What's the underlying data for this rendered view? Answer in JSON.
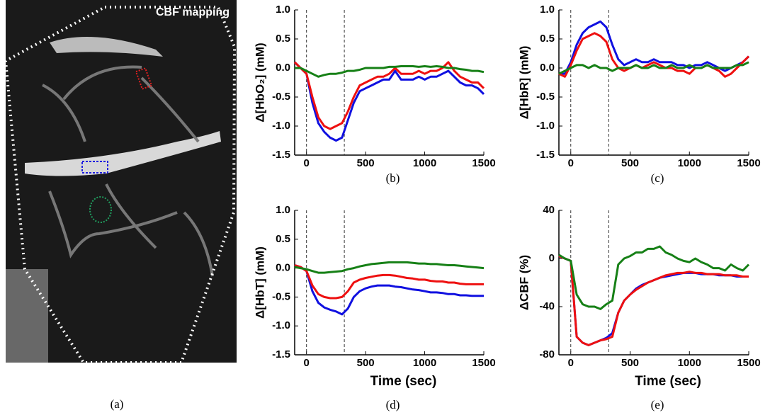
{
  "image_panel": {
    "label": "CBF mapping",
    "caption": "(a)"
  },
  "chart_data": [
    {
      "type": "line",
      "caption": "(b)",
      "ylabel": "Δ[HbO₂] (mM)",
      "x": [
        -100,
        -50,
        0,
        50,
        100,
        150,
        200,
        250,
        300,
        350,
        400,
        450,
        500,
        550,
        600,
        650,
        700,
        750,
        800,
        850,
        900,
        950,
        1000,
        1050,
        1100,
        1150,
        1200,
        1250,
        1300,
        1350,
        1400,
        1450,
        1500
      ],
      "series": [
        {
          "color": "#1010e0",
          "values": [
            0.1,
            0.0,
            -0.1,
            -0.6,
            -0.95,
            -1.1,
            -1.2,
            -1.25,
            -1.2,
            -0.9,
            -0.6,
            -0.4,
            -0.35,
            -0.3,
            -0.25,
            -0.2,
            -0.2,
            -0.05,
            -0.2,
            -0.2,
            -0.2,
            -0.15,
            -0.2,
            -0.15,
            -0.15,
            -0.1,
            -0.05,
            -0.15,
            -0.25,
            -0.3,
            -0.3,
            -0.35,
            -0.45
          ]
        },
        {
          "color": "#ee1010",
          "values": [
            0.1,
            0.0,
            -0.1,
            -0.5,
            -0.85,
            -1.0,
            -1.05,
            -1.0,
            -0.95,
            -0.75,
            -0.5,
            -0.3,
            -0.25,
            -0.2,
            -0.15,
            -0.15,
            -0.1,
            0.0,
            -0.1,
            -0.1,
            -0.1,
            -0.05,
            -0.1,
            -0.05,
            -0.05,
            0.0,
            0.1,
            -0.05,
            -0.15,
            -0.2,
            -0.25,
            -0.25,
            -0.35
          ]
        },
        {
          "color": "#168016",
          "values": [
            0.0,
            0.0,
            -0.05,
            -0.1,
            -0.15,
            -0.12,
            -0.1,
            -0.1,
            -0.08,
            -0.05,
            -0.05,
            -0.03,
            0.0,
            0.0,
            0.0,
            0.0,
            0.02,
            0.02,
            0.03,
            0.03,
            0.03,
            0.02,
            0.03,
            0.02,
            0.03,
            0.02,
            0.0,
            0.0,
            -0.02,
            -0.03,
            -0.05,
            -0.05,
            -0.07
          ]
        }
      ],
      "vlines": [
        0,
        320
      ],
      "xlim": [
        -100,
        1500
      ],
      "xticks": [
        0,
        500,
        1000,
        1500
      ],
      "ylim": [
        -1.5,
        1.0
      ],
      "yticks": [
        -1.5,
        {
          "value": -1,
          "label": "-1.0"
        },
        -0.5,
        {
          "value": 0,
          "label": "0.0"
        },
        0.5,
        {
          "value": 1,
          "label": "1.0"
        }
      ]
    },
    {
      "type": "line",
      "caption": "(c)",
      "ylabel": "Δ[HbR] (mM)",
      "x": [
        -100,
        -50,
        0,
        50,
        100,
        150,
        200,
        250,
        300,
        350,
        400,
        450,
        500,
        550,
        600,
        650,
        700,
        750,
        800,
        850,
        900,
        950,
        1000,
        1050,
        1100,
        1150,
        1200,
        1250,
        1300,
        1350,
        1400,
        1450,
        1500
      ],
      "series": [
        {
          "color": "#1010e0",
          "values": [
            -0.1,
            -0.1,
            0.1,
            0.4,
            0.6,
            0.7,
            0.75,
            0.8,
            0.7,
            0.4,
            0.15,
            0.05,
            0.1,
            0.15,
            0.1,
            0.1,
            0.15,
            0.1,
            0.1,
            0.1,
            0.05,
            0.05,
            0.0,
            0.05,
            0.05,
            0.1,
            0.05,
            0.0,
            -0.05,
            0.0,
            0.05,
            0.1,
            0.2
          ]
        },
        {
          "color": "#ee1010",
          "values": [
            -0.1,
            -0.15,
            0.05,
            0.3,
            0.5,
            0.55,
            0.6,
            0.55,
            0.45,
            0.15,
            0.0,
            -0.05,
            0.0,
            0.05,
            0.0,
            0.05,
            0.1,
            0.05,
            0.0,
            0.0,
            -0.05,
            -0.05,
            -0.1,
            0.0,
            0.0,
            0.05,
            0.0,
            -0.05,
            -0.15,
            -0.1,
            0.0,
            0.1,
            0.2
          ]
        },
        {
          "color": "#168016",
          "values": [
            -0.1,
            -0.05,
            0.0,
            0.05,
            0.05,
            0.0,
            0.05,
            0.0,
            0.0,
            -0.05,
            0.0,
            0.0,
            0.0,
            0.05,
            0.0,
            0.0,
            0.05,
            0.0,
            0.0,
            0.05,
            0.0,
            0.0,
            0.05,
            0.0,
            0.0,
            0.05,
            0.0,
            0.0,
            0.0,
            0.0,
            0.05,
            0.05,
            0.1
          ]
        }
      ],
      "vlines": [
        0,
        320
      ],
      "xlim": [
        -100,
        1500
      ],
      "xticks": [
        0,
        500,
        1000,
        1500
      ],
      "ylim": [
        -1.5,
        1.0
      ],
      "yticks": [
        -1.5,
        {
          "value": -1,
          "label": "-1.0"
        },
        -0.5,
        {
          "value": 0,
          "label": "0.0"
        },
        0.5,
        {
          "value": 1,
          "label": "1.0"
        }
      ]
    },
    {
      "type": "line",
      "caption": "(d)",
      "ylabel": "Δ[HbT] (mM)",
      "xlabel": "Time (sec)",
      "x": [
        -100,
        -50,
        0,
        50,
        100,
        150,
        200,
        250,
        300,
        350,
        400,
        450,
        500,
        550,
        600,
        650,
        700,
        750,
        800,
        850,
        900,
        950,
        1000,
        1050,
        1100,
        1150,
        1200,
        1250,
        1300,
        1350,
        1400,
        1450,
        1500
      ],
      "series": [
        {
          "color": "#1010e0",
          "values": [
            0.05,
            0.02,
            -0.05,
            -0.4,
            -0.6,
            -0.68,
            -0.72,
            -0.75,
            -0.8,
            -0.7,
            -0.5,
            -0.4,
            -0.35,
            -0.32,
            -0.3,
            -0.3,
            -0.3,
            -0.32,
            -0.33,
            -0.35,
            -0.37,
            -0.38,
            -0.4,
            -0.42,
            -0.42,
            -0.43,
            -0.45,
            -0.45,
            -0.47,
            -0.47,
            -0.48,
            -0.48,
            -0.48
          ]
        },
        {
          "color": "#ee1010",
          "values": [
            0.05,
            0.02,
            -0.05,
            -0.3,
            -0.45,
            -0.5,
            -0.52,
            -0.52,
            -0.5,
            -0.4,
            -0.25,
            -0.2,
            -0.17,
            -0.15,
            -0.13,
            -0.12,
            -0.12,
            -0.13,
            -0.15,
            -0.17,
            -0.18,
            -0.2,
            -0.2,
            -0.22,
            -0.23,
            -0.23,
            -0.25,
            -0.25,
            -0.27,
            -0.28,
            -0.28,
            -0.28,
            -0.28
          ]
        },
        {
          "color": "#168016",
          "values": [
            0.02,
            0.0,
            -0.02,
            -0.05,
            -0.08,
            -0.08,
            -0.07,
            -0.06,
            -0.05,
            -0.02,
            0.0,
            0.03,
            0.05,
            0.07,
            0.08,
            0.09,
            0.1,
            0.1,
            0.1,
            0.1,
            0.09,
            0.08,
            0.08,
            0.07,
            0.07,
            0.06,
            0.05,
            0.05,
            0.04,
            0.03,
            0.02,
            0.01,
            0.0
          ]
        }
      ],
      "vlines": [
        0,
        320
      ],
      "xlim": [
        -100,
        1500
      ],
      "xticks": [
        0,
        500,
        1000,
        1500
      ],
      "ylim": [
        -1.5,
        1.0
      ],
      "yticks": [
        -1.5,
        {
          "value": -1,
          "label": "-1.0"
        },
        -0.5,
        {
          "value": 0,
          "label": "0.0"
        },
        0.5,
        {
          "value": 1,
          "label": "1.0"
        }
      ]
    },
    {
      "type": "line",
      "caption": "(e)",
      "ylabel": "ΔCBF (%)",
      "xlabel": "Time (sec)",
      "x": [
        -100,
        -50,
        0,
        50,
        100,
        150,
        200,
        250,
        300,
        350,
        400,
        450,
        500,
        550,
        600,
        650,
        700,
        750,
        800,
        850,
        900,
        950,
        1000,
        1050,
        1100,
        1150,
        1200,
        1250,
        1300,
        1350,
        1400,
        1450,
        1500
      ],
      "series": [
        {
          "color": "#1010e0",
          "values": [
            2,
            0,
            -2,
            -65,
            -70,
            -72,
            -70,
            -68,
            -66,
            -62,
            -45,
            -35,
            -30,
            -25,
            -22,
            -20,
            -18,
            -16,
            -15,
            -14,
            -13,
            -12,
            -12,
            -12,
            -13,
            -13,
            -13,
            -14,
            -14,
            -14,
            -15,
            -15,
            -15
          ]
        },
        {
          "color": "#ee1010",
          "values": [
            2,
            0,
            -2,
            -65,
            -70,
            -72,
            -70,
            -68,
            -67,
            -65,
            -45,
            -35,
            -30,
            -26,
            -23,
            -20,
            -18,
            -16,
            -14,
            -13,
            -12,
            -12,
            -11,
            -12,
            -12,
            -13,
            -13,
            -13,
            -14,
            -14,
            -14,
            -15,
            -15
          ]
        },
        {
          "color": "#168016",
          "values": [
            3,
            0,
            -2,
            -30,
            -38,
            -40,
            -40,
            -42,
            -38,
            -35,
            -5,
            0,
            2,
            5,
            5,
            8,
            8,
            10,
            5,
            3,
            0,
            -2,
            -3,
            0,
            -3,
            -5,
            -8,
            -8,
            -10,
            -5,
            -8,
            -10,
            -5
          ]
        }
      ],
      "vlines": [
        0,
        320
      ],
      "xlim": [
        -100,
        1500
      ],
      "xticks": [
        0,
        500,
        1000,
        1500
      ],
      "ylim": [
        -80,
        40
      ],
      "yticks": [
        -80,
        -40,
        0,
        40
      ]
    }
  ]
}
